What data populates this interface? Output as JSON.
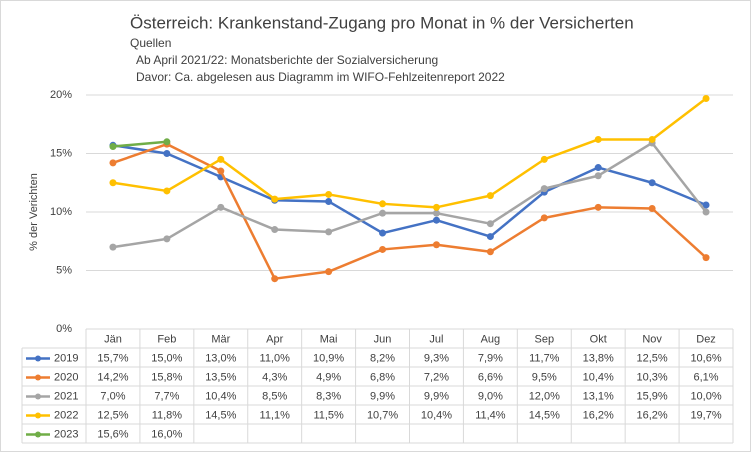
{
  "chart_data": {
    "type": "line",
    "title": "Österreich: Krankenstand-Zugang pro Monat in % der Versicherten",
    "subtitle": [
      "Quellen",
      "Ab April 2021/22: Monatsberichte der Sozialversicherung",
      "Davor: Ca. abgelesen aus Diagramm im WIFO-Fehlzeitenreport 2022"
    ],
    "y_label": "% der Verichten",
    "categories": [
      "Jän",
      "Feb",
      "Mär",
      "Apr",
      "Mai",
      "Jun",
      "Jul",
      "Aug",
      "Sep",
      "Okt",
      "Nov",
      "Dez"
    ],
    "ylim": [
      0,
      20
    ],
    "yticks": [
      {
        "value": 0,
        "label": "0%"
      },
      {
        "value": 5,
        "label": "5%"
      },
      {
        "value": 10,
        "label": "10%"
      },
      {
        "value": 15,
        "label": "15%"
      },
      {
        "value": 20,
        "label": "20%"
      }
    ],
    "grid": true,
    "series": [
      {
        "name": "2019",
        "color": "#4472c4",
        "values": [
          15.7,
          15.0,
          13.0,
          11.0,
          10.9,
          8.2,
          9.3,
          7.9,
          11.7,
          13.8,
          12.5,
          10.6
        ],
        "value_labels": [
          "15,7%",
          "15,0%",
          "13,0%",
          "11,0%",
          "10,9%",
          "8,2%",
          "9,3%",
          "7,9%",
          "11,7%",
          "13,8%",
          "12,5%",
          "10,6%"
        ]
      },
      {
        "name": "2020",
        "color": "#ed7d31",
        "values": [
          14.2,
          15.8,
          13.5,
          4.3,
          4.9,
          6.8,
          7.2,
          6.6,
          9.5,
          10.4,
          10.3,
          6.1
        ],
        "value_labels": [
          "14,2%",
          "15,8%",
          "13,5%",
          "4,3%",
          "4,9%",
          "6,8%",
          "7,2%",
          "6,6%",
          "9,5%",
          "10,4%",
          "10,3%",
          "6,1%"
        ]
      },
      {
        "name": "2021",
        "color": "#a5a5a5",
        "values": [
          7.0,
          7.7,
          10.4,
          8.5,
          8.3,
          9.9,
          9.9,
          9.0,
          12.0,
          13.1,
          15.9,
          10.0
        ],
        "value_labels": [
          "7,0%",
          "7,7%",
          "10,4%",
          "8,5%",
          "8,3%",
          "9,9%",
          "9,9%",
          "9,0%",
          "12,0%",
          "13,1%",
          "15,9%",
          "10,0%"
        ]
      },
      {
        "name": "2022",
        "color": "#ffc000",
        "values": [
          12.5,
          11.8,
          14.5,
          11.1,
          11.5,
          10.7,
          10.4,
          11.4,
          14.5,
          16.2,
          16.2,
          19.7
        ],
        "value_labels": [
          "12,5%",
          "11,8%",
          "14,5%",
          "11,1%",
          "11,5%",
          "10,7%",
          "10,4%",
          "11,4%",
          "14,5%",
          "16,2%",
          "16,2%",
          "19,7%"
        ]
      },
      {
        "name": "2023",
        "color": "#70ad47",
        "values": [
          15.6,
          16.0,
          null,
          null,
          null,
          null,
          null,
          null,
          null,
          null,
          null,
          null
        ],
        "value_labels": [
          "15,6%",
          "16,0%",
          null,
          null,
          null,
          null,
          null,
          null,
          null,
          null,
          null,
          null
        ]
      }
    ]
  }
}
